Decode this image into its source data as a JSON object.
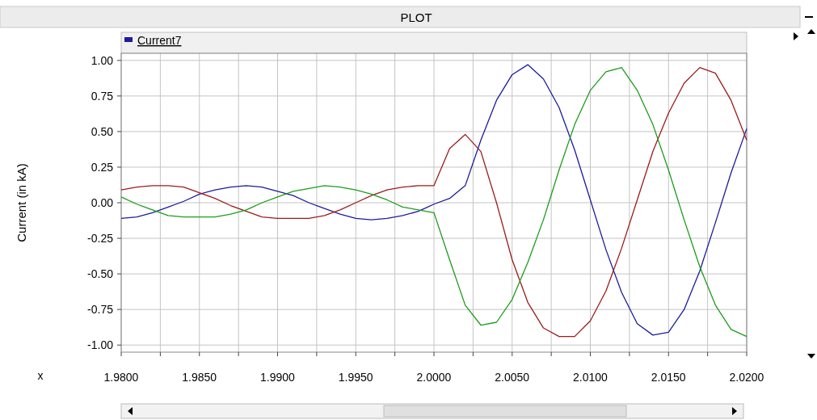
{
  "chart_data": {
    "type": "line",
    "title": "PLOT",
    "xlabel": "x",
    "ylabel": "Current (in kA)",
    "x": [
      1.98,
      1.981,
      1.982,
      1.983,
      1.984,
      1.985,
      1.986,
      1.987,
      1.988,
      1.989,
      1.99,
      1.991,
      1.992,
      1.993,
      1.994,
      1.995,
      1.996,
      1.997,
      1.998,
      1.999,
      2.0,
      2.001,
      2.002,
      2.003,
      2.004,
      2.005,
      2.006,
      2.007,
      2.008,
      2.009,
      2.01,
      2.011,
      2.012,
      2.013,
      2.014,
      2.015,
      2.016,
      2.017,
      2.018,
      2.019,
      2.02
    ],
    "series": [
      {
        "name": "Current7",
        "color": "#1c1c9c",
        "values": [
          -0.11,
          -0.1,
          -0.07,
          -0.03,
          0.01,
          0.06,
          0.09,
          0.11,
          0.12,
          0.11,
          0.08,
          0.05,
          0.0,
          -0.04,
          -0.08,
          -0.11,
          -0.12,
          -0.11,
          -0.09,
          -0.06,
          -0.01,
          0.03,
          0.12,
          0.44,
          0.72,
          0.9,
          0.97,
          0.87,
          0.67,
          0.37,
          0.02,
          -0.33,
          -0.63,
          -0.85,
          -0.93,
          -0.91,
          -0.75,
          -0.48,
          -0.14,
          0.21,
          0.52
        ]
      },
      {
        "color": "#9c1c1c",
        "values": [
          0.09,
          0.11,
          0.12,
          0.12,
          0.11,
          0.07,
          0.03,
          -0.02,
          -0.06,
          -0.1,
          -0.11,
          -0.11,
          -0.11,
          -0.09,
          -0.05,
          0.0,
          0.05,
          0.09,
          0.11,
          0.12,
          0.12,
          0.38,
          0.48,
          0.36,
          0.0,
          -0.4,
          -0.7,
          -0.88,
          -0.94,
          -0.94,
          -0.83,
          -0.62,
          -0.32,
          0.02,
          0.36,
          0.63,
          0.84,
          0.95,
          0.91,
          0.72,
          0.44
        ]
      },
      {
        "color": "#1c9c1c",
        "values": [
          0.04,
          -0.01,
          -0.05,
          -0.09,
          -0.1,
          -0.1,
          -0.1,
          -0.08,
          -0.05,
          0.0,
          0.04,
          0.08,
          0.1,
          0.12,
          0.11,
          0.09,
          0.06,
          0.02,
          -0.03,
          -0.05,
          -0.07,
          -0.4,
          -0.72,
          -0.86,
          -0.84,
          -0.68,
          -0.42,
          -0.12,
          0.23,
          0.55,
          0.79,
          0.92,
          0.95,
          0.79,
          0.55,
          0.23,
          -0.12,
          -0.45,
          -0.72,
          -0.89,
          -0.94
        ]
      }
    ],
    "xlim": [
      1.98,
      2.02
    ],
    "xticks": [
      {
        "value": 1.98,
        "label": "1.9800"
      },
      {
        "value": 1.9825,
        "label": null
      },
      {
        "value": 1.985,
        "label": "1.9850"
      },
      {
        "value": 1.9875,
        "label": null
      },
      {
        "value": 1.99,
        "label": "1.9900"
      },
      {
        "value": 1.9925,
        "label": null
      },
      {
        "value": 1.995,
        "label": "1.9950"
      },
      {
        "value": 1.9975,
        "label": null
      },
      {
        "value": 2.0,
        "label": "2.0000"
      },
      {
        "value": 2.0025,
        "label": null
      },
      {
        "value": 2.005,
        "label": "2.0050"
      },
      {
        "value": 2.0075,
        "label": null
      },
      {
        "value": 2.01,
        "label": "2.0100"
      },
      {
        "value": 2.0125,
        "label": null
      },
      {
        "value": 2.015,
        "label": "2.0150"
      },
      {
        "value": 2.0175,
        "label": null
      },
      {
        "value": 2.02,
        "label": "2.0200"
      }
    ],
    "ylim": [
      -1.05,
      1.05
    ],
    "yticks": [
      {
        "value": 1,
        "label": "1.00"
      },
      {
        "value": 0.75,
        "label": "0.75"
      },
      {
        "value": 0.5,
        "label": "0.50"
      },
      {
        "value": 0.25,
        "label": "0.25"
      },
      {
        "value": 0,
        "label": "0.00"
      },
      {
        "value": -0.25,
        "label": "-0.25"
      },
      {
        "value": -0.5,
        "label": "-0.50"
      },
      {
        "value": -0.75,
        "label": "-0.75"
      },
      {
        "value": -1,
        "label": "-1.00"
      }
    ],
    "grid": true,
    "legend": "top left",
    "marker": "none",
    "line_style": "solid"
  }
}
